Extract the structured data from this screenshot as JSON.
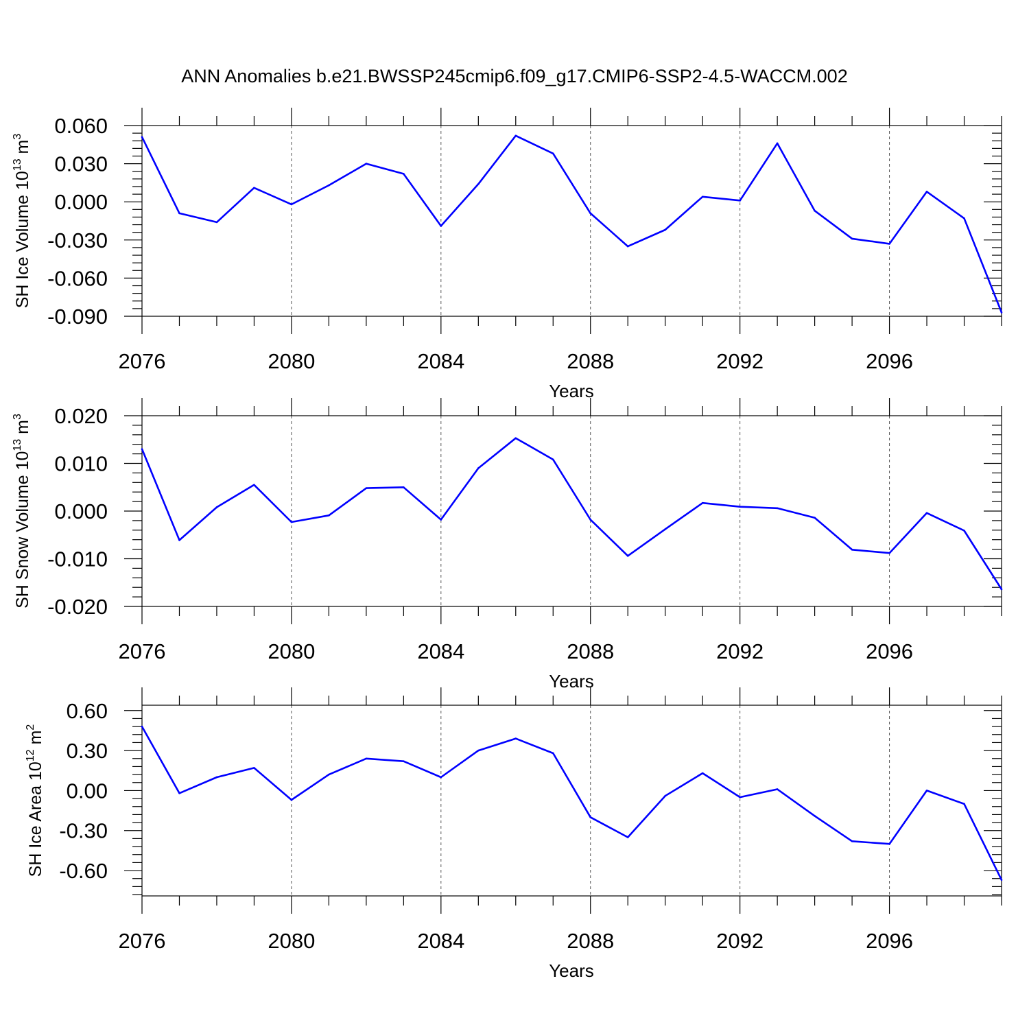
{
  "title": "ANN Anomalies b.e21.BWSSP245cmip6.f09_g17.CMIP6-SSP2-4.5-WACCM.002",
  "chart_data": [
    {
      "type": "line",
      "xlabel": "Years",
      "ylabel": {
        "text": "SH Ice Volume 10",
        "sup1": "13",
        "unit": " m",
        "sup2": "3"
      },
      "xlim": [
        2076,
        2099
      ],
      "ylim": [
        -0.09,
        0.06
      ],
      "xticks": [
        2076,
        2080,
        2084,
        2088,
        2092,
        2096
      ],
      "xtick_labels": [
        "2076",
        "2080",
        "2084",
        "2088",
        "2092",
        "2096"
      ],
      "yticks": [
        -0.09,
        -0.06,
        -0.03,
        0.0,
        0.03,
        0.06
      ],
      "ytick_labels": [
        "-0.090",
        "-0.060",
        "-0.030",
        "0.000",
        "0.030",
        "0.060"
      ],
      "grid": "vertical-dashed",
      "color": "#0000ff",
      "x": [
        2076,
        2077,
        2078,
        2079,
        2080,
        2081,
        2082,
        2083,
        2084,
        2085,
        2086,
        2087,
        2088,
        2089,
        2090,
        2091,
        2092,
        2093,
        2094,
        2095,
        2096,
        2097,
        2098,
        2099
      ],
      "values": [
        0.051,
        -0.009,
        -0.016,
        0.011,
        -0.002,
        0.013,
        0.03,
        0.022,
        -0.019,
        0.014,
        0.052,
        0.038,
        -0.009,
        -0.035,
        -0.022,
        0.004,
        0.001,
        0.046,
        -0.007,
        -0.029,
        -0.033,
        0.008,
        -0.013,
        -0.087
      ]
    },
    {
      "type": "line",
      "xlabel": "Years",
      "ylabel": {
        "text": "SH Snow Volume 10",
        "sup1": "13",
        "unit": " m",
        "sup2": "3"
      },
      "xlim": [
        2076,
        2099
      ],
      "ylim": [
        -0.02,
        0.02
      ],
      "xticks": [
        2076,
        2080,
        2084,
        2088,
        2092,
        2096
      ],
      "xtick_labels": [
        "2076",
        "2080",
        "2084",
        "2088",
        "2092",
        "2096"
      ],
      "yticks": [
        -0.02,
        -0.01,
        0.0,
        0.01,
        0.02
      ],
      "ytick_labels": [
        "-0.020",
        "-0.010",
        "0.000",
        "0.010",
        "0.020"
      ],
      "grid": "vertical-dashed",
      "color": "#0000ff",
      "x": [
        2076,
        2077,
        2078,
        2079,
        2080,
        2081,
        2082,
        2083,
        2084,
        2085,
        2086,
        2087,
        2088,
        2089,
        2090,
        2091,
        2092,
        2093,
        2094,
        2095,
        2096,
        2097,
        2098,
        2099
      ],
      "values": [
        0.013,
        -0.0061,
        0.0008,
        0.0055,
        -0.0023,
        -0.0009,
        0.0048,
        0.005,
        -0.0018,
        0.009,
        0.0153,
        0.0108,
        -0.0018,
        -0.0094,
        -0.0038,
        0.0017,
        0.0009,
        0.0006,
        -0.0014,
        -0.0081,
        -0.0088,
        -0.0004,
        -0.0041,
        -0.0164
      ]
    },
    {
      "type": "line",
      "xlabel": "Years",
      "ylabel": {
        "text": "SH Ice Area 10",
        "sup1": "12",
        "unit": " m",
        "sup2": "2"
      },
      "xlim": [
        2076,
        2099
      ],
      "ylim": [
        -0.79,
        0.64
      ],
      "xticks": [
        2076,
        2080,
        2084,
        2088,
        2092,
        2096
      ],
      "xtick_labels": [
        "2076",
        "2080",
        "2084",
        "2088",
        "2092",
        "2096"
      ],
      "yticks": [
        -0.6,
        -0.3,
        0.0,
        0.3,
        0.6
      ],
      "ytick_labels": [
        "-0.60",
        "-0.30",
        "0.00",
        "0.30",
        "0.60"
      ],
      "grid": "vertical-dashed",
      "color": "#0000ff",
      "x": [
        2076,
        2077,
        2078,
        2079,
        2080,
        2081,
        2082,
        2083,
        2084,
        2085,
        2086,
        2087,
        2088,
        2089,
        2090,
        2091,
        2092,
        2093,
        2094,
        2095,
        2096,
        2097,
        2098,
        2099
      ],
      "values": [
        0.48,
        -0.02,
        0.1,
        0.17,
        -0.07,
        0.12,
        0.24,
        0.22,
        0.1,
        0.3,
        0.39,
        0.28,
        -0.2,
        -0.35,
        -0.04,
        0.13,
        -0.05,
        0.01,
        -0.19,
        -0.38,
        -0.4,
        0.0,
        -0.1,
        -0.67
      ]
    }
  ]
}
